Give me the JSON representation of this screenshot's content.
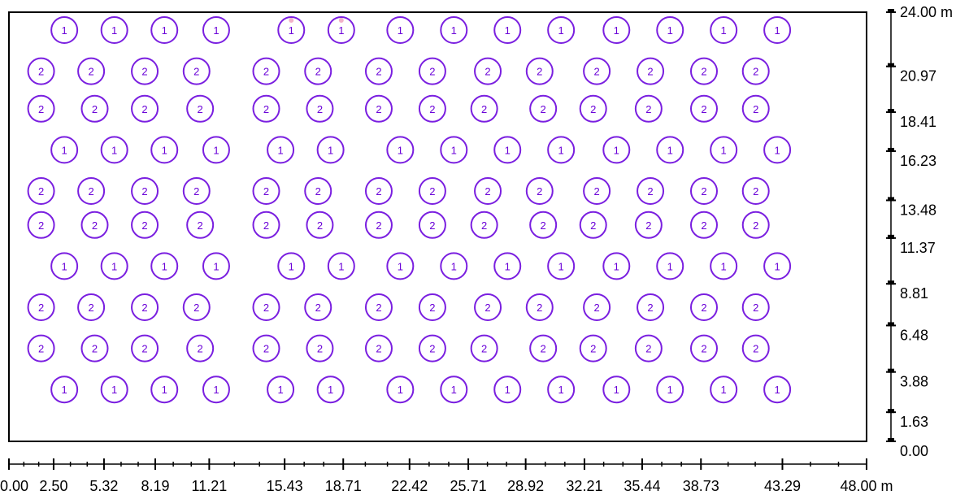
{
  "colors": {
    "marker": "#7a1fe0",
    "marker_text": "#6a00d8",
    "dot": "#f2b1c8",
    "axis": "#000000"
  },
  "x_axis": {
    "ticks": [
      "0.00",
      "2.50",
      "5.32",
      "8.19",
      "11.21",
      "15.43",
      "18.71",
      "22.42",
      "25.71",
      "28.92",
      "32.21",
      "35.44",
      "38.73",
      "43.29",
      "48.00 m"
    ]
  },
  "y_axis": {
    "ticks": [
      "24.00 m",
      "20.97",
      "18.41",
      "16.23",
      "13.48",
      "11.37",
      "8.81",
      "6.48",
      "3.88",
      "1.63",
      "0.00"
    ]
  },
  "markers": {
    "rows": [
      {
        "label": "1",
        "y": 23.0,
        "x": [
          3.1,
          5.9,
          8.7,
          11.6,
          15.8,
          18.6,
          21.9,
          24.9,
          27.9,
          30.9,
          34.0,
          37.0,
          40.0,
          43.0
        ],
        "dots": [
          15.8,
          18.6
        ]
      },
      {
        "label": "2",
        "y": 20.7,
        "x": [
          1.8,
          4.6,
          7.6,
          10.5,
          14.4,
          17.3,
          20.7,
          23.7,
          26.8,
          29.7,
          32.9,
          35.9,
          38.9,
          41.8
        ]
      },
      {
        "label": "2",
        "y": 18.6,
        "x": [
          1.8,
          4.8,
          7.6,
          10.7,
          14.4,
          17.4,
          20.7,
          23.7,
          26.6,
          29.9,
          32.7,
          35.8,
          38.9,
          41.8
        ]
      },
      {
        "label": "1",
        "y": 16.3,
        "x": [
          3.1,
          5.9,
          8.7,
          11.6,
          15.2,
          18.0,
          21.9,
          24.9,
          27.9,
          30.9,
          34.0,
          37.0,
          40.0,
          43.0
        ]
      },
      {
        "label": "2",
        "y": 14.0,
        "x": [
          1.8,
          4.6,
          7.6,
          10.5,
          14.4,
          17.3,
          20.7,
          23.7,
          26.8,
          29.7,
          32.9,
          35.9,
          38.9,
          41.8
        ]
      },
      {
        "label": "2",
        "y": 12.1,
        "x": [
          1.8,
          4.8,
          7.6,
          10.7,
          14.4,
          17.4,
          20.7,
          23.7,
          26.6,
          29.9,
          32.7,
          35.8,
          38.9,
          41.8
        ]
      },
      {
        "label": "1",
        "y": 9.8,
        "x": [
          3.1,
          5.9,
          8.7,
          11.6,
          15.8,
          18.6,
          21.9,
          24.9,
          27.9,
          30.9,
          34.0,
          37.0,
          40.0,
          43.0
        ]
      },
      {
        "label": "2",
        "y": 7.5,
        "x": [
          1.8,
          4.6,
          7.6,
          10.5,
          14.4,
          17.3,
          20.7,
          23.7,
          26.8,
          29.7,
          32.9,
          35.9,
          38.9,
          41.8
        ]
      },
      {
        "label": "2",
        "y": 5.2,
        "x": [
          1.8,
          4.8,
          7.6,
          10.7,
          14.4,
          17.4,
          20.7,
          23.7,
          26.6,
          29.9,
          32.7,
          35.8,
          38.9,
          41.8
        ]
      },
      {
        "label": "1",
        "y": 2.9,
        "x": [
          3.1,
          5.9,
          8.7,
          11.6,
          15.2,
          18.0,
          21.9,
          24.9,
          27.9,
          30.9,
          34.0,
          37.0,
          40.0,
          43.0
        ]
      }
    ]
  }
}
